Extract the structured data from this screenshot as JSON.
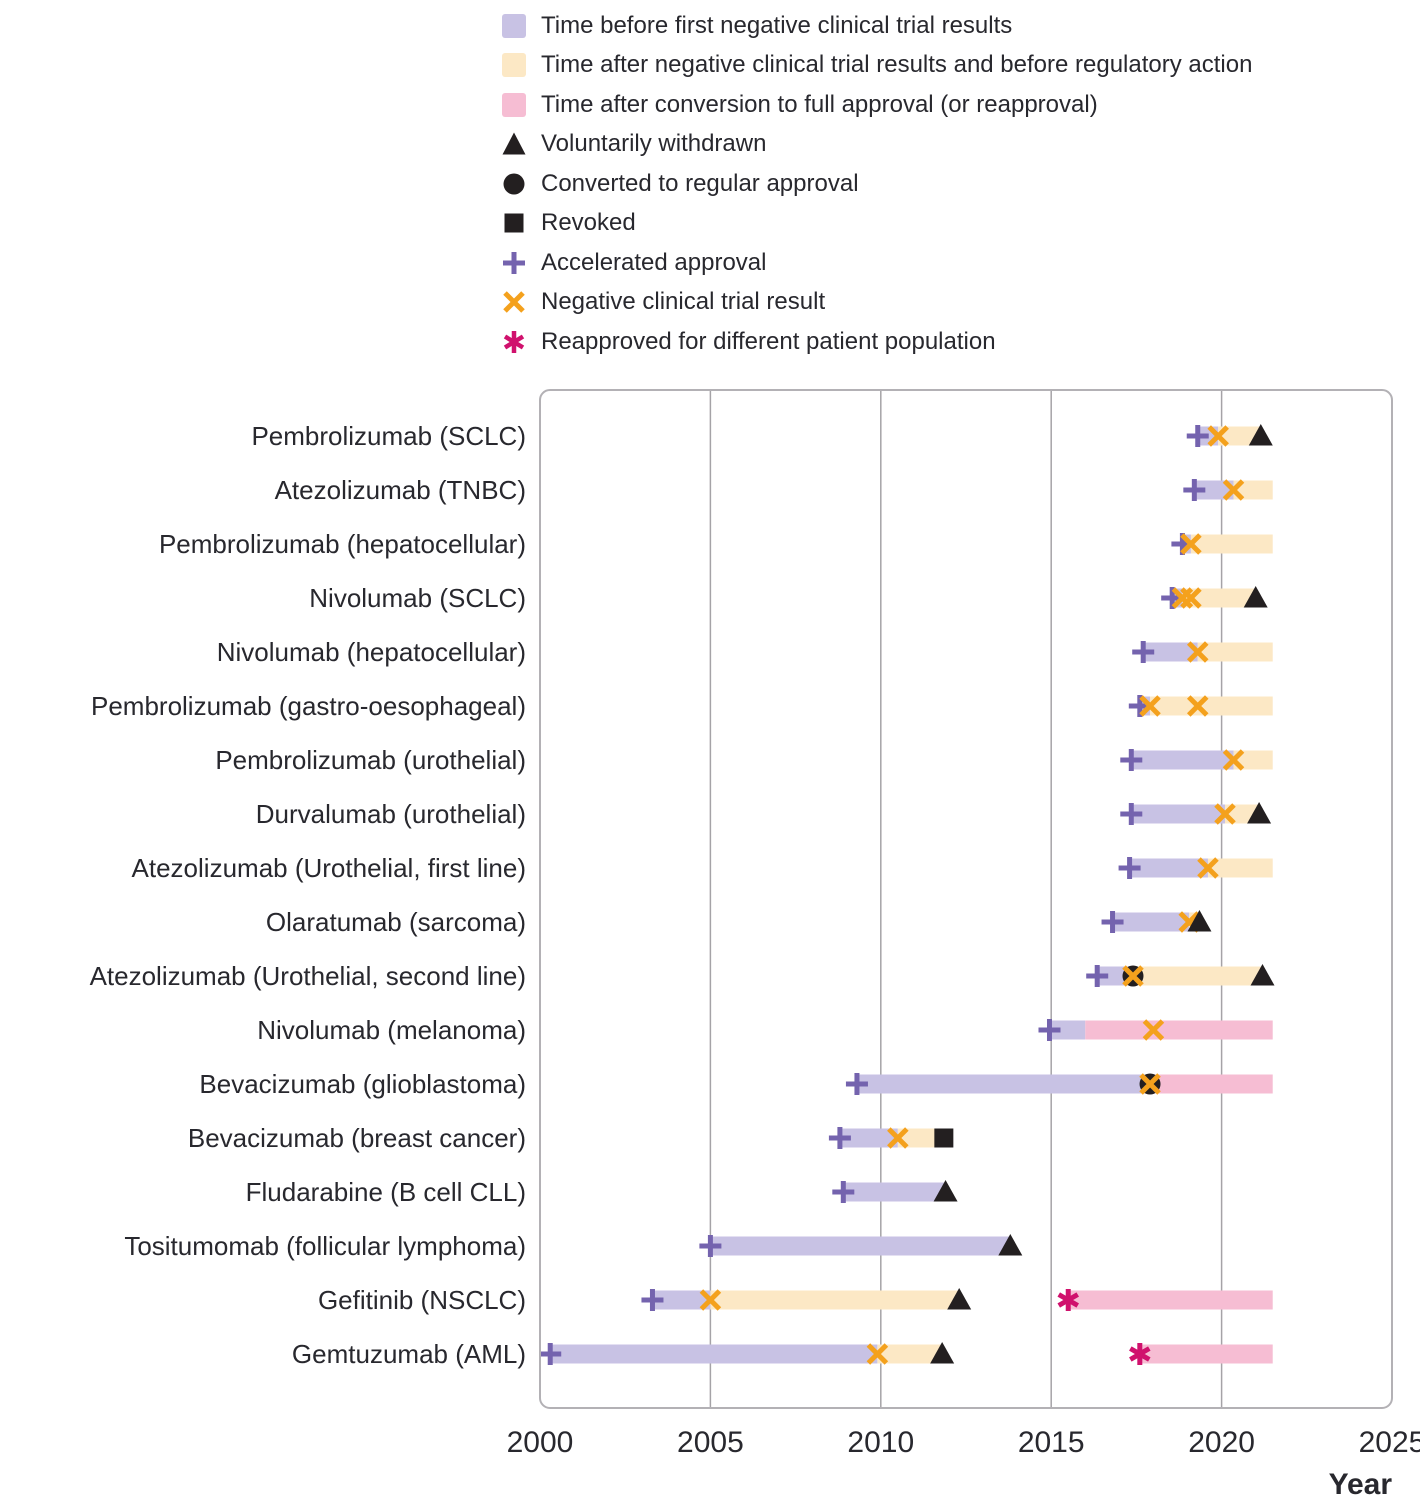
{
  "legend": {
    "items": [
      {
        "type": "bar",
        "color": "#c8c2e4",
        "label": "Time before first negative clinical trial results"
      },
      {
        "type": "bar",
        "color": "#fce8c5",
        "label": "Time after negative clinical trial results and before regulatory action"
      },
      {
        "type": "bar",
        "color": "#f6bdd3",
        "label": "Time after conversion to full approval (or reapproval)"
      },
      {
        "type": "triangle",
        "color": "#231f20",
        "label": "Voluntarily withdrawn"
      },
      {
        "type": "circle",
        "color": "#231f20",
        "label": "Converted to regular approval"
      },
      {
        "type": "square",
        "color": "#231f20",
        "label": "Revoked"
      },
      {
        "type": "plus",
        "color": "#7463ae",
        "label": "Accelerated approval"
      },
      {
        "type": "x",
        "color": "#f4a11d",
        "label": "Negative clinical trial result"
      },
      {
        "type": "star",
        "color": "#d0116d",
        "label": "Reapproved for different patient population"
      }
    ]
  },
  "chart_data": {
    "type": "timeline-bar",
    "xlabel": "Year",
    "xlim": [
      2000,
      2025
    ],
    "x_ticks": [
      2000,
      2005,
      2010,
      2015,
      2020,
      2025
    ],
    "gridline_years": [
      2005,
      2010,
      2015,
      2020
    ],
    "colors": {
      "before_negative": "#c8c2e4",
      "after_negative": "#fce8c5",
      "after_conversion": "#f6bdd3",
      "accelerated_approval": "#7463ae",
      "negative_trial": "#f4a11d",
      "reapproved": "#d0116d",
      "black_marker": "#231f20",
      "gridline": "#a5a3a7",
      "border": "#b3b1b5",
      "text": "#28282e"
    },
    "rows": [
      {
        "label": "Pembrolizumab (SCLC)",
        "segments": [
          {
            "from": 2019.3,
            "to": 2019.9,
            "kind": "before_negative"
          },
          {
            "from": 2019.9,
            "to": 2021.15,
            "kind": "after_negative"
          }
        ],
        "markers": [
          {
            "year": 2019.3,
            "kind": "accelerated_approval"
          },
          {
            "year": 2019.9,
            "kind": "negative_trial"
          },
          {
            "year": 2021.15,
            "kind": "withdrawn"
          }
        ]
      },
      {
        "label": "Atezolizumab (TNBC)",
        "segments": [
          {
            "from": 2019.2,
            "to": 2020.35,
            "kind": "before_negative"
          },
          {
            "from": 2020.35,
            "to": 2021.5,
            "kind": "after_negative"
          }
        ],
        "markers": [
          {
            "year": 2019.2,
            "kind": "accelerated_approval"
          },
          {
            "year": 2020.35,
            "kind": "negative_trial"
          }
        ]
      },
      {
        "label": "Pembrolizumab (hepatocellular)",
        "segments": [
          {
            "from": 2018.85,
            "to": 2019.1,
            "kind": "before_negative"
          },
          {
            "from": 2019.1,
            "to": 2021.5,
            "kind": "after_negative"
          }
        ],
        "markers": [
          {
            "year": 2018.85,
            "kind": "accelerated_approval"
          },
          {
            "year": 2019.1,
            "kind": "negative_trial"
          }
        ]
      },
      {
        "label": "Nivolumab (SCLC)",
        "segments": [
          {
            "from": 2018.55,
            "to": 2018.85,
            "kind": "before_negative"
          },
          {
            "from": 2018.85,
            "to": 2021.0,
            "kind": "after_negative"
          }
        ],
        "markers": [
          {
            "year": 2018.55,
            "kind": "accelerated_approval"
          },
          {
            "year": 2018.85,
            "kind": "negative_trial"
          },
          {
            "year": 2019.1,
            "kind": "negative_trial"
          },
          {
            "year": 2021.0,
            "kind": "withdrawn"
          }
        ]
      },
      {
        "label": "Nivolumab (hepatocellular)",
        "segments": [
          {
            "from": 2017.7,
            "to": 2019.3,
            "kind": "before_negative"
          },
          {
            "from": 2019.3,
            "to": 2021.5,
            "kind": "after_negative"
          }
        ],
        "markers": [
          {
            "year": 2017.7,
            "kind": "accelerated_approval"
          },
          {
            "year": 2019.3,
            "kind": "negative_trial"
          }
        ]
      },
      {
        "label": "Pembrolizumab (gastro-oesophageal)",
        "segments": [
          {
            "from": 2017.6,
            "to": 2017.9,
            "kind": "before_negative"
          },
          {
            "from": 2017.9,
            "to": 2021.5,
            "kind": "after_negative"
          }
        ],
        "markers": [
          {
            "year": 2017.6,
            "kind": "accelerated_approval"
          },
          {
            "year": 2017.9,
            "kind": "negative_trial"
          },
          {
            "year": 2019.3,
            "kind": "negative_trial"
          }
        ]
      },
      {
        "label": "Pembrolizumab (urothelial)",
        "segments": [
          {
            "from": 2017.35,
            "to": 2020.35,
            "kind": "before_negative"
          },
          {
            "from": 2020.35,
            "to": 2021.5,
            "kind": "after_negative"
          }
        ],
        "markers": [
          {
            "year": 2017.35,
            "kind": "accelerated_approval"
          },
          {
            "year": 2020.35,
            "kind": "negative_trial"
          }
        ]
      },
      {
        "label": "Durvalumab (urothelial)",
        "segments": [
          {
            "from": 2017.35,
            "to": 2020.1,
            "kind": "before_negative"
          },
          {
            "from": 2020.1,
            "to": 2021.1,
            "kind": "after_negative"
          }
        ],
        "markers": [
          {
            "year": 2017.35,
            "kind": "accelerated_approval"
          },
          {
            "year": 2020.1,
            "kind": "negative_trial"
          },
          {
            "year": 2021.1,
            "kind": "withdrawn"
          }
        ]
      },
      {
        "label": "Atezolizumab (Urothelial, first line)",
        "segments": [
          {
            "from": 2017.3,
            "to": 2019.6,
            "kind": "before_negative"
          },
          {
            "from": 2019.6,
            "to": 2021.5,
            "kind": "after_negative"
          }
        ],
        "markers": [
          {
            "year": 2017.3,
            "kind": "accelerated_approval"
          },
          {
            "year": 2019.6,
            "kind": "negative_trial"
          }
        ]
      },
      {
        "label": "Olaratumab (sarcoma)",
        "segments": [
          {
            "from": 2016.8,
            "to": 2019.05,
            "kind": "before_negative"
          },
          {
            "from": 2019.05,
            "to": 2019.35,
            "kind": "after_negative"
          }
        ],
        "markers": [
          {
            "year": 2016.8,
            "kind": "accelerated_approval"
          },
          {
            "year": 2019.05,
            "kind": "negative_trial"
          },
          {
            "year": 2019.35,
            "kind": "withdrawn"
          }
        ]
      },
      {
        "label": "Atezolizumab (Urothelial, second line)",
        "segments": [
          {
            "from": 2016.35,
            "to": 2017.4,
            "kind": "before_negative"
          },
          {
            "from": 2017.4,
            "to": 2021.2,
            "kind": "after_negative"
          }
        ],
        "markers": [
          {
            "year": 2016.35,
            "kind": "accelerated_approval"
          },
          {
            "year": 2017.4,
            "kind": "converted"
          },
          {
            "year": 2017.4,
            "kind": "negative_trial"
          },
          {
            "year": 2021.2,
            "kind": "withdrawn"
          }
        ]
      },
      {
        "label": "Nivolumab (melanoma)",
        "segments": [
          {
            "from": 2014.95,
            "to": 2016.0,
            "kind": "before_negative"
          },
          {
            "from": 2016.0,
            "to": 2021.5,
            "kind": "after_conversion"
          }
        ],
        "markers": [
          {
            "year": 2014.95,
            "kind": "accelerated_approval"
          },
          {
            "year": 2018.0,
            "kind": "negative_trial"
          }
        ]
      },
      {
        "label": "Bevacizumab (glioblastoma)",
        "segments": [
          {
            "from": 2009.3,
            "to": 2017.9,
            "kind": "before_negative"
          },
          {
            "from": 2017.9,
            "to": 2021.5,
            "kind": "after_conversion"
          }
        ],
        "markers": [
          {
            "year": 2009.3,
            "kind": "accelerated_approval"
          },
          {
            "year": 2017.9,
            "kind": "converted"
          },
          {
            "year": 2017.9,
            "kind": "negative_trial"
          }
        ]
      },
      {
        "label": "Bevacizumab (breast cancer)",
        "segments": [
          {
            "from": 2008.8,
            "to": 2010.5,
            "kind": "before_negative"
          },
          {
            "from": 2010.5,
            "to": 2011.85,
            "kind": "after_negative"
          }
        ],
        "markers": [
          {
            "year": 2008.8,
            "kind": "accelerated_approval"
          },
          {
            "year": 2010.5,
            "kind": "negative_trial"
          },
          {
            "year": 2011.85,
            "kind": "revoked"
          }
        ]
      },
      {
        "label": "Fludarabine (B cell CLL)",
        "segments": [
          {
            "from": 2008.9,
            "to": 2011.9,
            "kind": "before_negative"
          }
        ],
        "markers": [
          {
            "year": 2008.9,
            "kind": "accelerated_approval"
          },
          {
            "year": 2011.9,
            "kind": "withdrawn"
          }
        ]
      },
      {
        "label": "Tositumomab (follicular lymphoma)",
        "segments": [
          {
            "from": 2005.0,
            "to": 2013.8,
            "kind": "before_negative"
          }
        ],
        "markers": [
          {
            "year": 2005.0,
            "kind": "accelerated_approval"
          },
          {
            "year": 2013.8,
            "kind": "withdrawn"
          }
        ]
      },
      {
        "label": "Gefitinib (NSCLC)",
        "segments": [
          {
            "from": 2003.3,
            "to": 2005.0,
            "kind": "before_negative"
          },
          {
            "from": 2005.0,
            "to": 2012.3,
            "kind": "after_negative"
          },
          {
            "from": 2015.5,
            "to": 2021.5,
            "kind": "after_conversion"
          }
        ],
        "markers": [
          {
            "year": 2003.3,
            "kind": "accelerated_approval"
          },
          {
            "year": 2005.0,
            "kind": "negative_trial"
          },
          {
            "year": 2012.3,
            "kind": "withdrawn"
          },
          {
            "year": 2015.5,
            "kind": "reapproved"
          }
        ]
      },
      {
        "label": "Gemtuzumab (AML)",
        "segments": [
          {
            "from": 2000.3,
            "to": 2009.9,
            "kind": "before_negative"
          },
          {
            "from": 2009.9,
            "to": 2011.8,
            "kind": "after_negative"
          },
          {
            "from": 2017.6,
            "to": 2021.5,
            "kind": "after_conversion"
          }
        ],
        "markers": [
          {
            "year": 2000.3,
            "kind": "accelerated_approval"
          },
          {
            "year": 2009.9,
            "kind": "negative_trial"
          },
          {
            "year": 2011.8,
            "kind": "withdrawn"
          },
          {
            "year": 2017.6,
            "kind": "reapproved"
          }
        ]
      }
    ]
  }
}
